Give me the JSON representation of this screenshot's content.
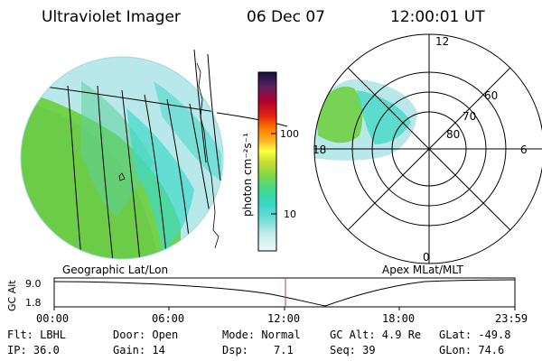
{
  "header": {
    "instrument": "Ultraviolet Imager",
    "date": "06 Dec 07",
    "time": "12:00:01 UT"
  },
  "colorbar": {
    "unit_label": "photon cm⁻²s⁻¹",
    "ticks": [
      "100",
      "10"
    ]
  },
  "polar_plot": {
    "mlt_labels": [
      "12",
      "18",
      "6",
      "0"
    ],
    "lat_labels": [
      "60",
      "70",
      "80"
    ]
  },
  "map_labels": {
    "left": "Geographic Lat/Lon",
    "right": "Apex MLat/MLT"
  },
  "altitude_panel": {
    "axis_label": "GC Alt",
    "tick_top": "9.0",
    "tick_bottom": "1.8",
    "time_ticks": [
      "00:00",
      "06:00",
      "12:00",
      "18:00",
      "23:59"
    ],
    "current_time_color": "#b04060"
  },
  "info": {
    "row1": {
      "filter": "Flt: LBHL",
      "door": "Door: Open",
      "mode": "Mode: Normal",
      "gc_alt": "GC Alt: 4.9 Re",
      "glat": "GLat: -49.8"
    },
    "row2": {
      "ip": "IP: 36.0",
      "gain": "Gain: 14",
      "dsp_label": "Dsp:",
      "dsp_value": "7.1",
      "seq": "Seq: 39",
      "glon": "GLon: 74.6"
    }
  }
}
